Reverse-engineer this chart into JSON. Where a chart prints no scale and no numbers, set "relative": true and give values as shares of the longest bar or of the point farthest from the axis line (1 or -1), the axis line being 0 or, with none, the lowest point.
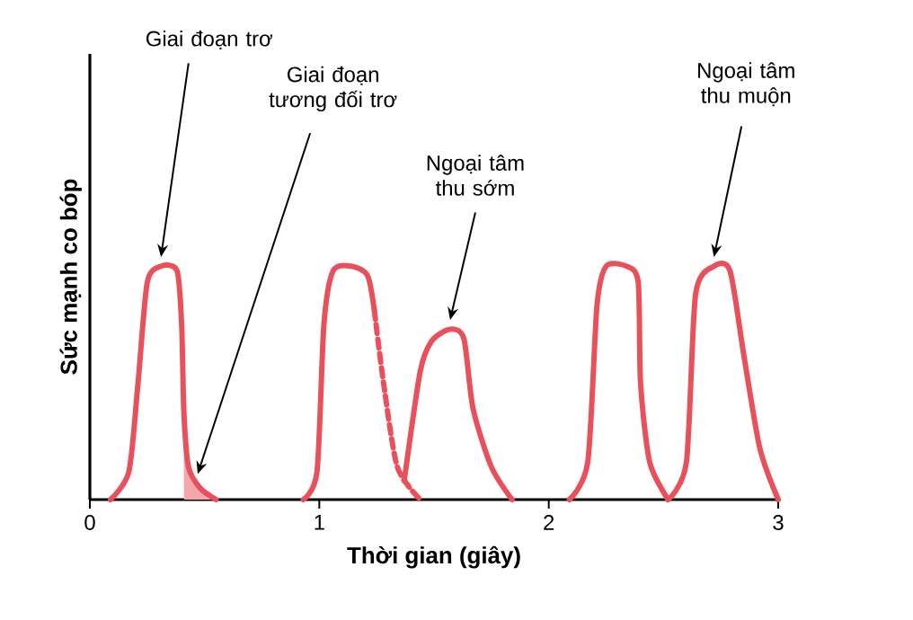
{
  "chart_data": {
    "type": "line",
    "xlabel": "Thời gian (giây)",
    "ylabel": "Sức mạnh co bóp",
    "relative": true,
    "xlim": [
      0,
      3
    ],
    "xticks": [
      0,
      1,
      2,
      3
    ],
    "tick_labels": "x",
    "grid": false,
    "marker": "none",
    "series": [
      {
        "color": "#f4a6ad",
        "type": "area",
        "x": [
          0.41,
          0.43,
          0.48,
          0.55
        ],
        "values": [
          0.37,
          0.14,
          0.05,
          0
        ]
      },
      {
        "color": "#e8505b",
        "x": [
          0.09,
          0.17,
          0.21,
          0.25,
          0.31,
          0.38,
          0.4,
          0.41,
          0.43,
          0.48,
          0.55
        ],
        "values": [
          0,
          0.12,
          0.5,
          0.93,
          1.0,
          0.98,
          0.75,
          0.37,
          0.14,
          0.05,
          0
        ]
      },
      {
        "color": "#e8505b",
        "x": [
          0.93,
          0.99,
          1.02,
          1.06,
          1.14,
          1.21,
          1.24
        ],
        "values": [
          0,
          0.12,
          0.75,
          0.98,
          1.0,
          0.96,
          0.81
        ]
      },
      {
        "color": "#e8505b",
        "line_style": "dashed",
        "x": [
          1.24,
          1.28,
          1.34,
          1.44
        ],
        "values": [
          0.81,
          0.5,
          0.14,
          0
        ]
      },
      {
        "color": "#e8505b",
        "x": [
          1.37,
          1.44,
          1.49,
          1.57,
          1.63,
          1.67,
          1.75,
          1.84
        ],
        "values": [
          0.08,
          0.55,
          0.68,
          0.73,
          0.69,
          0.39,
          0.14,
          0
        ]
      },
      {
        "color": "#e8505b",
        "x": [
          2.09,
          2.17,
          2.21,
          2.25,
          2.34,
          2.39,
          2.4,
          2.44,
          2.52
        ],
        "values": [
          0,
          0.16,
          0.83,
          1.0,
          1.0,
          0.93,
          0.5,
          0.16,
          0
        ]
      },
      {
        "color": "#e8505b",
        "x": [
          2.52,
          2.6,
          2.64,
          2.72,
          2.79,
          2.85,
          2.92,
          3.0
        ],
        "values": [
          0,
          0.16,
          0.88,
          1.0,
          0.98,
          0.62,
          0.22,
          0
        ]
      }
    ],
    "annotations": [
      "Giai đoạn trơ",
      "Giai đoạn tương đối trơ",
      "Ngoại tâm thu sớm",
      "Ngoại tâm thu muộn"
    ]
  }
}
